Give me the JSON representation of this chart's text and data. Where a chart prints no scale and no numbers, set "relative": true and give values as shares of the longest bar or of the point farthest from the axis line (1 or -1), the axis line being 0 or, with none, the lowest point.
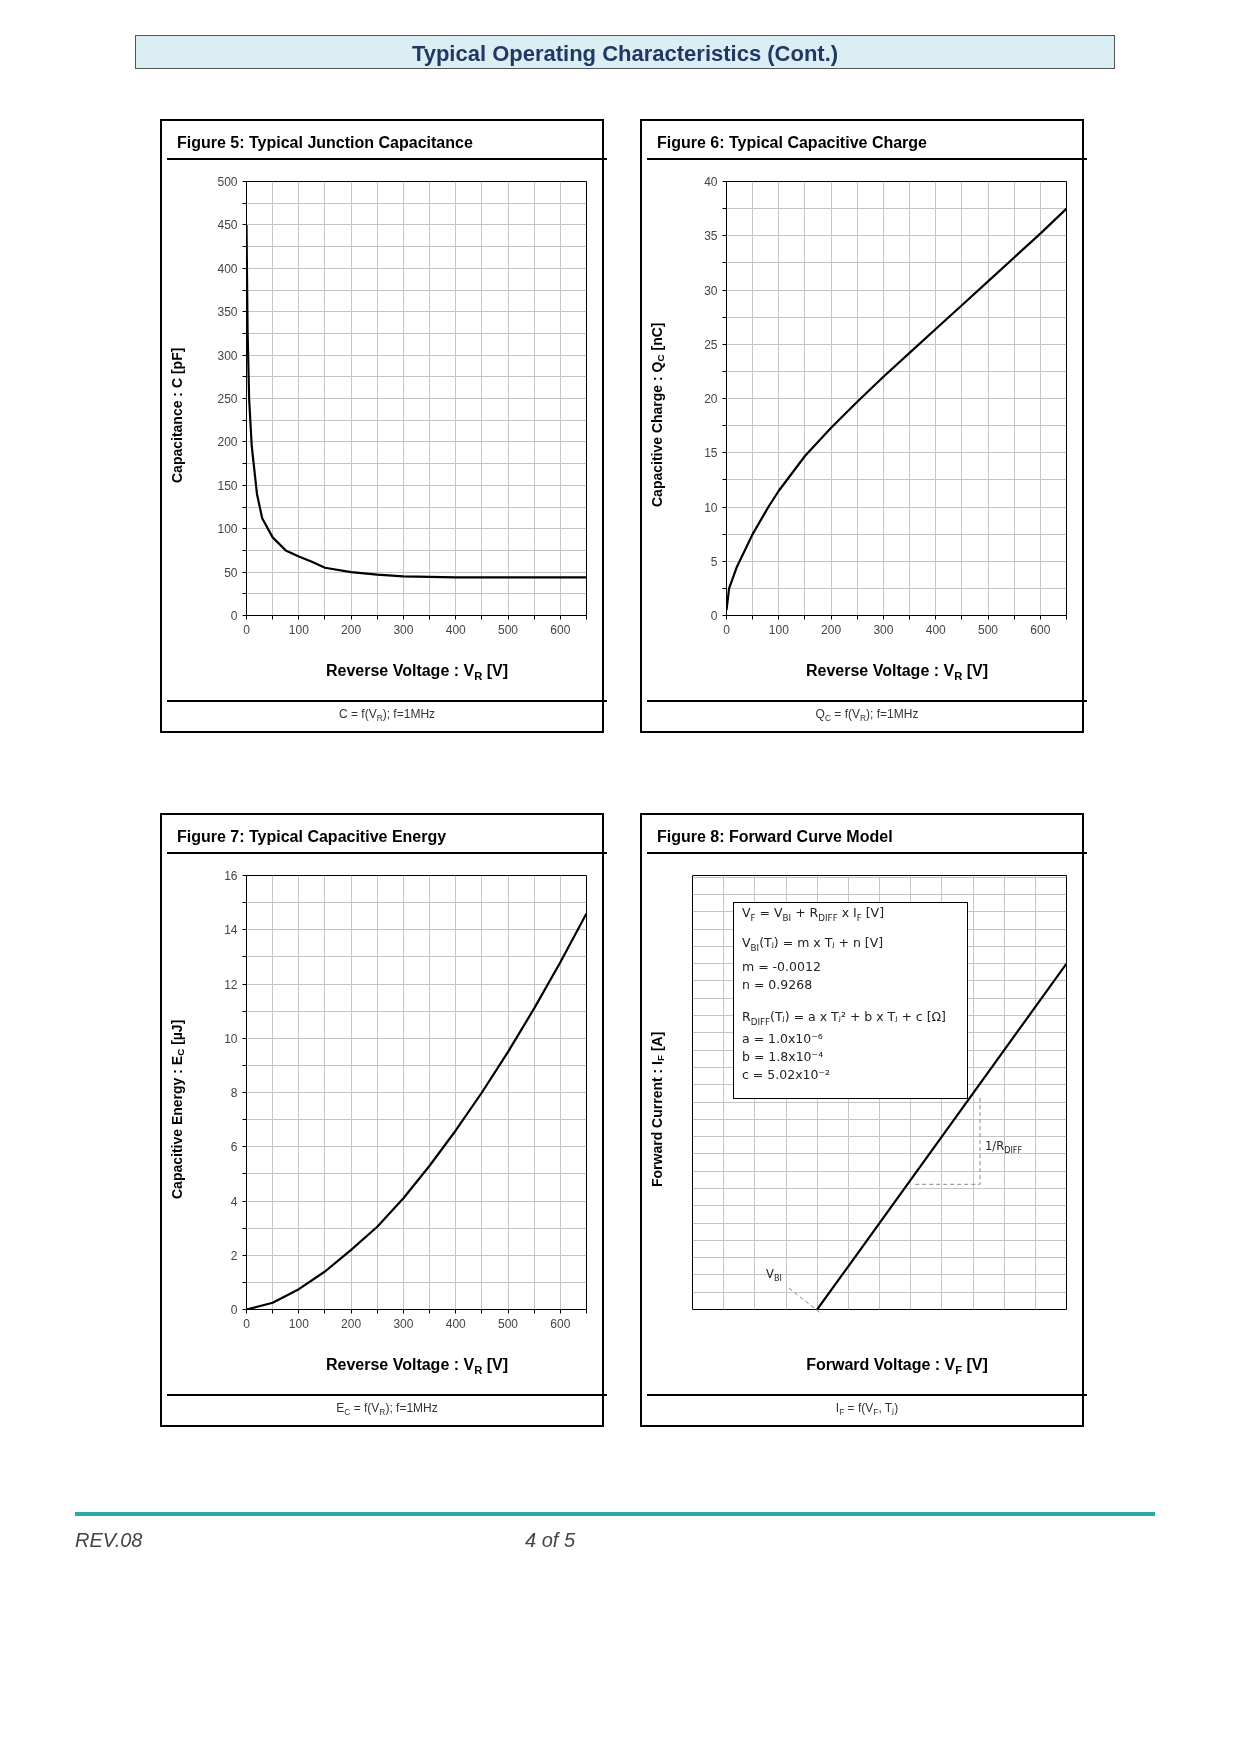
{
  "chart_data": [
    {
      "type": "other",
      "title": "Typical Operating Characteristics (Cont.)",
      "annotations": [
        "REV.08",
        "4 of 5"
      ]
    },
    {
      "type": "line",
      "title": "Figure 5: Typical Junction Capacitance",
      "xlabel": "Reverse Voltage : V$_{R}$ [V]",
      "ylabel": "Capacitance : C [pF]",
      "annotations": [
        "C = f(V$_{R}$); f=1MHz"
      ],
      "color": "#000000",
      "line_style": "solid",
      "grid": true,
      "x": [
        0,
        2,
        5,
        10,
        20,
        30,
        50,
        75,
        100,
        125,
        150,
        200,
        250,
        300,
        400,
        500,
        650
      ],
      "values": [
        450,
        330,
        250,
        195,
        140,
        112,
        90,
        75,
        68,
        62,
        55,
        50,
        47,
        45,
        44,
        44,
        44
      ],
      "xlim": [
        0,
        650
      ],
      "ylim": [
        0,
        500
      ],
      "xticks": [
        0,
        {
          "value": 50,
          "label": null
        },
        100,
        {
          "value": 150,
          "label": null
        },
        200,
        {
          "value": 250,
          "label": null
        },
        300,
        {
          "value": 350,
          "label": null
        },
        400,
        {
          "value": 450,
          "label": null
        },
        500,
        {
          "value": 550,
          "label": null
        },
        600,
        {
          "value": 650,
          "label": null
        }
      ],
      "yticks": [
        0,
        {
          "value": 25,
          "label": null
        },
        50,
        {
          "value": 75,
          "label": null
        },
        100,
        {
          "value": 125,
          "label": null
        },
        150,
        {
          "value": 175,
          "label": null
        },
        200,
        {
          "value": 225,
          "label": null
        },
        250,
        {
          "value": 275,
          "label": null
        },
        300,
        {
          "value": 325,
          "label": null
        },
        350,
        {
          "value": 375,
          "label": null
        },
        400,
        {
          "value": 425,
          "label": null
        },
        450,
        {
          "value": 475,
          "label": null
        },
        500
      ]
    },
    {
      "type": "line",
      "title": "Figure 6: Typical Capacitive Charge",
      "xlabel": "Reverse Voltage : V$_{R}$ [V]",
      "ylabel": "Capacitive Charge : Q$_{C}$ [nC]",
      "annotations": [
        "Q$_{C}$ = f(V$_{R}$); f=1MHz"
      ],
      "color": "#000000",
      "line_style": "solid",
      "grid": true,
      "x": [
        0,
        5,
        20,
        50,
        80,
        100,
        150,
        200,
        250,
        300,
        350,
        400,
        450,
        500,
        550,
        600,
        650
      ],
      "values": [
        0.5,
        2.5,
        4.5,
        7.5,
        10,
        11.5,
        14.7,
        17.3,
        19.7,
        22,
        24.2,
        26.4,
        28.6,
        30.8,
        33,
        35.2,
        37.5
      ],
      "xlim": [
        0,
        650
      ],
      "ylim": [
        0,
        40
      ],
      "xticks": [
        0,
        {
          "value": 50,
          "label": null
        },
        100,
        {
          "value": 150,
          "label": null
        },
        200,
        {
          "value": 250,
          "label": null
        },
        300,
        {
          "value": 350,
          "label": null
        },
        400,
        {
          "value": 450,
          "label": null
        },
        500,
        {
          "value": 550,
          "label": null
        },
        600,
        {
          "value": 650,
          "label": null
        }
      ],
      "yticks": [
        0,
        {
          "value": 2.5,
          "label": null
        },
        5,
        {
          "value": 7.5,
          "label": null
        },
        10,
        {
          "value": 12.5,
          "label": null
        },
        15,
        {
          "value": 17.5,
          "label": null
        },
        20,
        {
          "value": 22.5,
          "label": null
        },
        25,
        {
          "value": 27.5,
          "label": null
        },
        30,
        {
          "value": 32.5,
          "label": null
        },
        35,
        {
          "value": 37.5,
          "label": null
        },
        40
      ]
    },
    {
      "type": "line",
      "title": "Figure 7: Typical Capacitive Energy",
      "xlabel": "Reverse Voltage : V$_{R}$ [V]",
      "ylabel": "Capacitive Energy : E$_{C}$ [µJ]",
      "annotations": [
        "E$_{C}$ = f(V$_{R}$); f=1MHz"
      ],
      "color": "#000000",
      "line_style": "solid",
      "grid": true,
      "x": [
        0,
        50,
        100,
        150,
        200,
        250,
        300,
        350,
        400,
        450,
        500,
        550,
        600,
        650
      ],
      "values": [
        0,
        0.25,
        0.75,
        1.4,
        2.2,
        3.05,
        4.1,
        5.3,
        6.6,
        8,
        9.5,
        11.1,
        12.8,
        14.6
      ],
      "xlim": [
        0,
        650
      ],
      "ylim": [
        0,
        16
      ],
      "xticks": [
        0,
        {
          "value": 50,
          "label": null
        },
        100,
        {
          "value": 150,
          "label": null
        },
        200,
        {
          "value": 250,
          "label": null
        },
        300,
        {
          "value": 350,
          "label": null
        },
        400,
        {
          "value": 450,
          "label": null
        },
        500,
        {
          "value": 550,
          "label": null
        },
        600,
        {
          "value": 650,
          "label": null
        }
      ],
      "yticks": [
        0,
        {
          "value": 1,
          "label": null
        },
        2,
        {
          "value": 3,
          "label": null
        },
        4,
        {
          "value": 5,
          "label": null
        },
        6,
        {
          "value": 7,
          "label": null
        },
        8,
        {
          "value": 9,
          "label": null
        },
        10,
        {
          "value": 11,
          "label": null
        },
        12,
        {
          "value": 13,
          "label": null
        },
        14,
        {
          "value": 15,
          "label": null
        },
        16
      ]
    },
    {
      "type": "line",
      "title": "Figure 8: Forward Curve Model",
      "xlabel": "Forward Voltage : V$_{F}$ [V]",
      "ylabel": "Forward Current : I$_{F}$ [A]",
      "color": "#000000",
      "line_style": "solid",
      "grid": true,
      "relative": true,
      "annotations": [
        "V$_{F}$ = V$_{BI}$ + R$_{DIFF}$ x I$_{F}$ [V]",
        "V$_{BI}$(Tⱼ) = m x Tⱼ + n [V]",
        "m = -0.0012",
        " n = 0.9268",
        "R$_{DIFF}$(Tⱼ) = a x Tⱼ² + b x Tⱼ + c [Ω]",
        "a = 1.0x10⁻⁶",
        "b = 1.8x10⁻⁴",
        "c = 5.02x10⁻²",
        "V$_{BI}$",
        "1/R$_{DIFF}$",
        "I$_{F}$ = f(V$_{F}$, Tⱼ)"
      ],
      "categories": [
        null,
        null,
        null,
        null,
        null,
        null,
        null,
        null,
        null,
        null,
        null,
        null,
        null
      ],
      "values": [
        null,
        null,
        null,
        null,
        0,
        0.125,
        0.25,
        0.375,
        0.5,
        0.625,
        0.75,
        0.875,
        1
      ]
    }
  ]
}
